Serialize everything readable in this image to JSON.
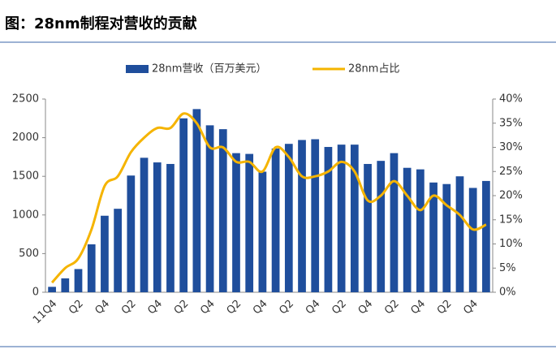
{
  "title": "图：28nm制程对营收的贡献",
  "chart_data": {
    "type": "bar",
    "categories": [
      "11Q4",
      null,
      "Q2",
      null,
      "Q4",
      null,
      "Q2",
      null,
      "Q4",
      null,
      "Q2",
      null,
      "Q4",
      null,
      "Q2",
      null,
      "Q4",
      null,
      "Q2",
      null,
      "Q4",
      null,
      "Q2",
      null,
      "Q4",
      null,
      "Q2",
      null,
      "Q4",
      null,
      "Q2",
      null,
      "Q4",
      null
    ],
    "series": [
      {
        "name": "28nm营收（百万美元）",
        "color": "#1f4e9c",
        "type": "bar",
        "values": [
          70,
          180,
          300,
          620,
          990,
          1080,
          1510,
          1740,
          1680,
          1660,
          2250,
          2370,
          2160,
          2110,
          1800,
          1790,
          1560,
          1860,
          1920,
          1970,
          1980,
          1880,
          1910,
          1910,
          1660,
          1700,
          1800,
          1610,
          1590,
          1420,
          1400,
          1500,
          1350,
          1440
        ]
      },
      {
        "name": "28nm占比",
        "color": "#f5b400",
        "type": "line",
        "axis": "y2",
        "values": [
          2,
          5,
          7,
          13,
          22,
          24,
          29,
          32,
          34,
          34,
          37,
          35,
          30,
          30,
          27,
          27,
          25,
          30,
          28,
          24,
          24,
          25,
          27,
          25,
          19,
          20,
          23,
          20,
          17,
          20,
          18,
          16,
          13,
          14
        ]
      }
    ],
    "ylim": [
      0,
      2500
    ],
    "yticks": [
      0,
      500,
      1000,
      1500,
      2000,
      2500
    ],
    "y2lim": [
      0,
      40
    ],
    "y2ticks": [
      {
        "value": 0,
        "label": "0%"
      },
      {
        "value": 5,
        "label": "5%"
      },
      {
        "value": 10,
        "label": "10%"
      },
      {
        "value": 15,
        "label": "15%"
      },
      {
        "value": 20,
        "label": "20%"
      },
      {
        "value": 25,
        "label": "25%"
      },
      {
        "value": 30,
        "label": "30%"
      },
      {
        "value": 35,
        "label": "35%"
      },
      {
        "value": 40,
        "label": "40%"
      }
    ],
    "legend": "top"
  }
}
